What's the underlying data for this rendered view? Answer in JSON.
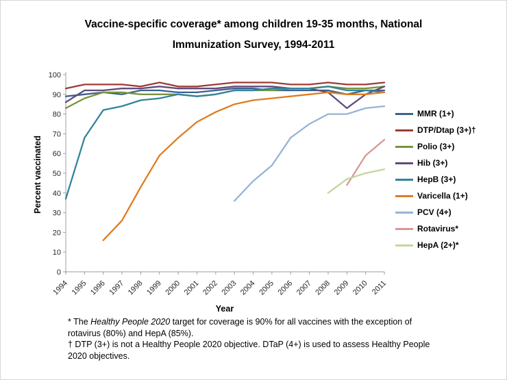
{
  "title": {
    "line1": "Vaccine-specific coverage* among children 19-35 months, National",
    "line2": "Immunization Survey, 1994-2011"
  },
  "chart_data": {
    "type": "line",
    "x": [
      1994,
      1995,
      1996,
      1997,
      1998,
      1999,
      2000,
      2001,
      2002,
      2003,
      2004,
      2005,
      2006,
      2007,
      2008,
      2009,
      2010,
      2011
    ],
    "xlabel": "Year",
    "ylabel": "Percent vaccinated",
    "ylim": [
      0,
      100
    ],
    "ytick_step": 10,
    "grid": false,
    "legend_position": "right",
    "axis_color": "#9c9c9c",
    "tick_label_color": "#262626",
    "series": [
      {
        "name": "MMR (1+)",
        "color": "#3b618e",
        "values": [
          89,
          90,
          91,
          90,
          92,
          92,
          91,
          91,
          92,
          93,
          93,
          92,
          92,
          92,
          92,
          90,
          92,
          92
        ]
      },
      {
        "name": "DTP/Dtap (3+)†",
        "color": "#9e3b35",
        "values": [
          93,
          95,
          95,
          95,
          94,
          96,
          94,
          94,
          95,
          96,
          96,
          96,
          95,
          95,
          96,
          95,
          95,
          96
        ]
      },
      {
        "name": "Polio (3+)",
        "color": "#77933c",
        "values": [
          83,
          88,
          91,
          91,
          90,
          90,
          90,
          89,
          90,
          92,
          92,
          92,
          93,
          93,
          94,
          93,
          93,
          94
        ]
      },
      {
        "name": "Hib (3+)",
        "color": "#604a7b",
        "values": [
          86,
          92,
          92,
          93,
          93,
          94,
          93,
          93,
          93,
          94,
          94,
          94,
          93,
          93,
          91,
          83,
          90,
          94
        ]
      },
      {
        "name": "HepB (3+)",
        "color": "#31849b",
        "values": [
          37,
          68,
          82,
          84,
          87,
          88,
          90,
          89,
          90,
          92,
          92,
          93,
          93,
          93,
          94,
          92,
          92,
          91
        ]
      },
      {
        "name": "Varicella (1+)",
        "color": "#df7c1f",
        "values": [
          null,
          null,
          16,
          26,
          43,
          59,
          68,
          76,
          81,
          85,
          87,
          88,
          89,
          90,
          91,
          90,
          90,
          91
        ]
      },
      {
        "name": "PCV (4+)",
        "color": "#95b3d7",
        "values": [
          null,
          null,
          null,
          null,
          null,
          null,
          null,
          null,
          null,
          36,
          46,
          54,
          68,
          75,
          80,
          80,
          83,
          84
        ]
      },
      {
        "name": "Rotavirus*",
        "color": "#d99694",
        "values": [
          null,
          null,
          null,
          null,
          null,
          null,
          null,
          null,
          null,
          null,
          null,
          null,
          null,
          null,
          null,
          44,
          59,
          67
        ]
      },
      {
        "name": "HepA (2+)*",
        "color": "#c3d69b",
        "values": [
          null,
          null,
          null,
          null,
          null,
          null,
          null,
          null,
          null,
          null,
          null,
          null,
          null,
          null,
          40,
          47,
          50,
          52
        ]
      }
    ]
  },
  "footnotes": {
    "lines": [
      {
        "segments": [
          {
            "text": "* The ",
            "italic": false
          },
          {
            "text": "Healthy People 2020",
            "italic": true
          },
          {
            "text": " target for coverage is 90% for all vaccines with the exception of",
            "italic": false
          }
        ]
      },
      {
        "segments": [
          {
            "text": "rotavirus (80%) and HepA (85%).",
            "italic": false
          }
        ]
      },
      {
        "segments": [
          {
            "text": "† DTP (3+) is not a Healthy People 2020 objective.  DTaP (4+) is used to assess Healthy People",
            "italic": false
          }
        ]
      },
      {
        "segments": [
          {
            "text": "2020 objectives.",
            "italic": false
          }
        ]
      }
    ]
  }
}
